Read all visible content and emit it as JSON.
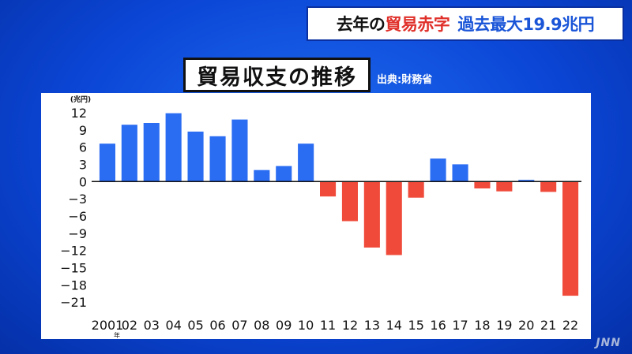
{
  "headline": {
    "part1": "去年の",
    "part2": "貿易赤字",
    "part3": "過去最大19.9兆円"
  },
  "chart_title": "貿易収支の推移",
  "source": "出典:財務省",
  "watermark": "JNN",
  "chart_data": {
    "type": "bar",
    "title": "貿易収支の推移",
    "unit_label": "(兆円)",
    "year_suffix": "年",
    "categories": [
      "2001",
      "02",
      "03",
      "04",
      "05",
      "06",
      "07",
      "08",
      "09",
      "10",
      "11",
      "12",
      "13",
      "14",
      "15",
      "16",
      "17",
      "18",
      "19",
      "20",
      "21",
      "22"
    ],
    "values": [
      6.6,
      9.9,
      10.2,
      11.9,
      8.7,
      7.9,
      10.8,
      2.0,
      2.7,
      6.6,
      -2.6,
      -6.9,
      -11.5,
      -12.8,
      -2.8,
      4.0,
      3.0,
      -1.2,
      -1.7,
      0.3,
      -1.8,
      -19.9
    ],
    "yticks": [
      12,
      9,
      6,
      3,
      0,
      -3,
      -6,
      -9,
      -12,
      -15,
      -18,
      -21
    ],
    "ylim": [
      -22.5,
      13.5
    ],
    "positive_color": "#2a6cf2",
    "negative_color": "#ef4a3a",
    "grid": false
  }
}
